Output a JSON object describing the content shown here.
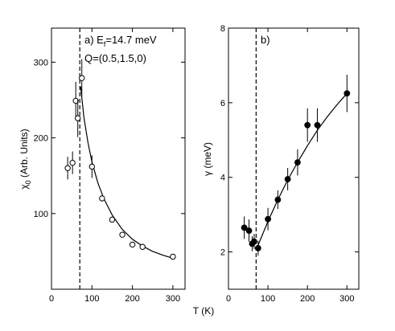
{
  "chart_data": [
    {
      "type": "scatter",
      "panel_label": "a) E",
      "panel_sub": "f",
      "panel_rest": "=14.7 meV",
      "panel_q": "Q=(0.5,1.5,0)",
      "ylabel_main": "χ",
      "ylabel_sub": "0",
      "ylabel_rest": " (Arb. Units)",
      "xlim": [
        0,
        330
      ],
      "ylim": [
        0,
        345
      ],
      "xticks": [
        0,
        100,
        200,
        300
      ],
      "yticks": [
        100,
        200,
        300
      ],
      "marker": "open-circle",
      "vline_x": 70,
      "points": [
        {
          "x": 40,
          "y": 160,
          "err": 15
        },
        {
          "x": 52,
          "y": 167,
          "err": 15
        },
        {
          "x": 60,
          "y": 249,
          "err": 25
        },
        {
          "x": 65,
          "y": 226,
          "err": 25
        },
        {
          "x": 75,
          "y": 279,
          "err": 25
        },
        {
          "x": 100,
          "y": 162,
          "err": 15
        },
        {
          "x": 125,
          "y": 120,
          "err": 4
        },
        {
          "x": 150,
          "y": 92,
          "err": 3
        },
        {
          "x": 175,
          "y": 72,
          "err": 3
        },
        {
          "x": 200,
          "y": 59,
          "err": 3
        },
        {
          "x": 225,
          "y": 56,
          "err": 3
        },
        {
          "x": 300,
          "y": 43,
          "err": 3
        }
      ],
      "fit": {
        "x": [
          72,
          80,
          90,
          100,
          115,
          130,
          150,
          175,
          200,
          225,
          250,
          275,
          300
        ],
        "y": [
          268,
          228,
          194,
          168,
          140,
          119,
          98,
          79,
          66,
          57,
          50,
          45,
          41
        ]
      }
    },
    {
      "type": "scatter",
      "panel_label": "b)",
      "ylabel": "γ (meV)",
      "xlim": [
        0,
        330
      ],
      "ylim": [
        1,
        8
      ],
      "xticks": [
        0,
        100,
        200,
        300
      ],
      "yticks": [
        2,
        4,
        6,
        8
      ],
      "marker": "filled-circle",
      "vline_x": 70,
      "points": [
        {
          "x": 40,
          "y": 2.65,
          "err": 0.3
        },
        {
          "x": 52,
          "y": 2.57,
          "err": 0.3
        },
        {
          "x": 60,
          "y": 2.22,
          "err": 0.2
        },
        {
          "x": 65,
          "y": 2.28,
          "err": 0.2
        },
        {
          "x": 75,
          "y": 2.1,
          "err": 0.2
        },
        {
          "x": 100,
          "y": 2.88,
          "err": 0.3
        },
        {
          "x": 125,
          "y": 3.4,
          "err": 0.25
        },
        {
          "x": 150,
          "y": 3.95,
          "err": 0.3
        },
        {
          "x": 175,
          "y": 4.4,
          "err": 0.35
        },
        {
          "x": 200,
          "y": 5.4,
          "err": 0.45
        },
        {
          "x": 225,
          "y": 5.4,
          "err": 0.45
        },
        {
          "x": 300,
          "y": 6.25,
          "err": 0.5
        }
      ],
      "fit": {
        "x": [
          72,
          100,
          125,
          150,
          175,
          200,
          225,
          250,
          275,
          300
        ],
        "y": [
          2.1,
          2.82,
          3.4,
          3.93,
          4.4,
          4.85,
          5.26,
          5.62,
          5.95,
          6.25
        ]
      }
    }
  ],
  "shared_xlabel": "T (K)"
}
